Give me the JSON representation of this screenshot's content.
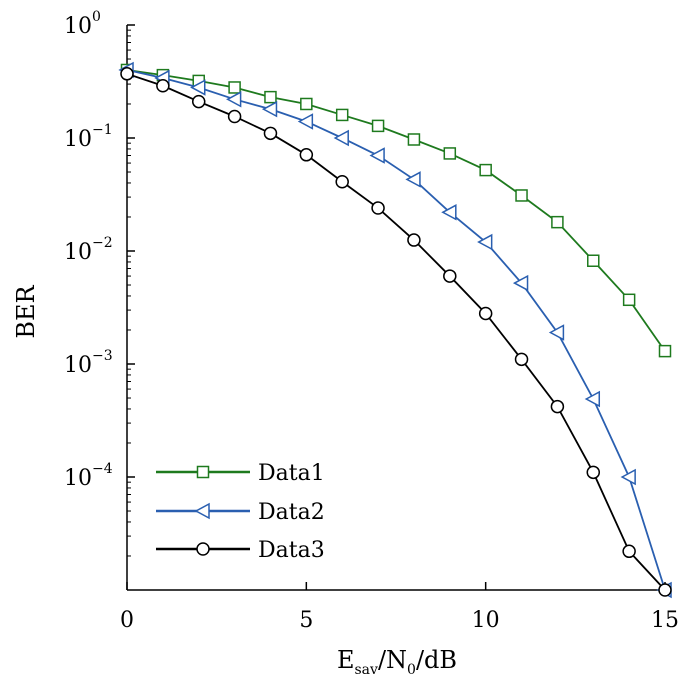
{
  "chart_data": {
    "type": "line",
    "scale": {
      "y": "log"
    },
    "xlabel": {
      "main": "E",
      "sub": "sav",
      "mid": "/N",
      "sub2": "0",
      "tail": "/dB"
    },
    "ylabel": "BER",
    "xlim": [
      0,
      15
    ],
    "ylim": [
      1e-05,
      1
    ],
    "grid": false,
    "legend_placement": "bottom-left",
    "x_ticks": [
      {
        "value": 0,
        "label": "0"
      },
      {
        "value": 5,
        "label": "5"
      },
      {
        "value": 10,
        "label": "10"
      },
      {
        "value": 15,
        "label": "15"
      }
    ],
    "y_ticks": [
      {
        "value": 1,
        "base": "10",
        "exp": "0"
      },
      {
        "value": 0.1,
        "base": "10",
        "exp": "−1"
      },
      {
        "value": 0.01,
        "base": "10",
        "exp": "−2"
      },
      {
        "value": 0.001,
        "base": "10",
        "exp": "−3"
      },
      {
        "value": 0.0001,
        "base": "10",
        "exp": "−4"
      }
    ],
    "series": [
      {
        "name": "Data1",
        "color": "#1e7a1e",
        "marker": "square",
        "x": [
          0,
          1,
          2,
          3,
          4,
          5,
          6,
          7,
          8,
          9,
          10,
          11,
          12,
          13,
          14,
          15
        ],
        "y": [
          0.4,
          0.36,
          0.32,
          0.28,
          0.23,
          0.2,
          0.16,
          0.128,
          0.097,
          0.073,
          0.052,
          0.031,
          0.018,
          0.0082,
          0.0037,
          0.0013
        ]
      },
      {
        "name": "Data2",
        "color": "#2a5fb0",
        "marker": "triangle-left",
        "x": [
          0,
          1,
          2,
          3,
          4,
          5,
          6,
          7,
          8,
          9,
          10,
          11,
          12,
          13,
          14,
          15
        ],
        "y": [
          0.4,
          0.34,
          0.28,
          0.22,
          0.18,
          0.14,
          0.1,
          0.07,
          0.043,
          0.022,
          0.012,
          0.0052,
          0.0019,
          0.00049,
          0.0001,
          1e-05
        ]
      },
      {
        "name": "Data3",
        "color": "#000000",
        "marker": "circle",
        "x": [
          0,
          1,
          2,
          3,
          4,
          5,
          6,
          7,
          8,
          9,
          10,
          11,
          12,
          13,
          14,
          15
        ],
        "y": [
          0.37,
          0.29,
          0.21,
          0.155,
          0.11,
          0.071,
          0.041,
          0.024,
          0.0125,
          0.006,
          0.0028,
          0.0011,
          0.00042,
          0.00011,
          2.2e-05,
          1e-05
        ]
      }
    ]
  }
}
